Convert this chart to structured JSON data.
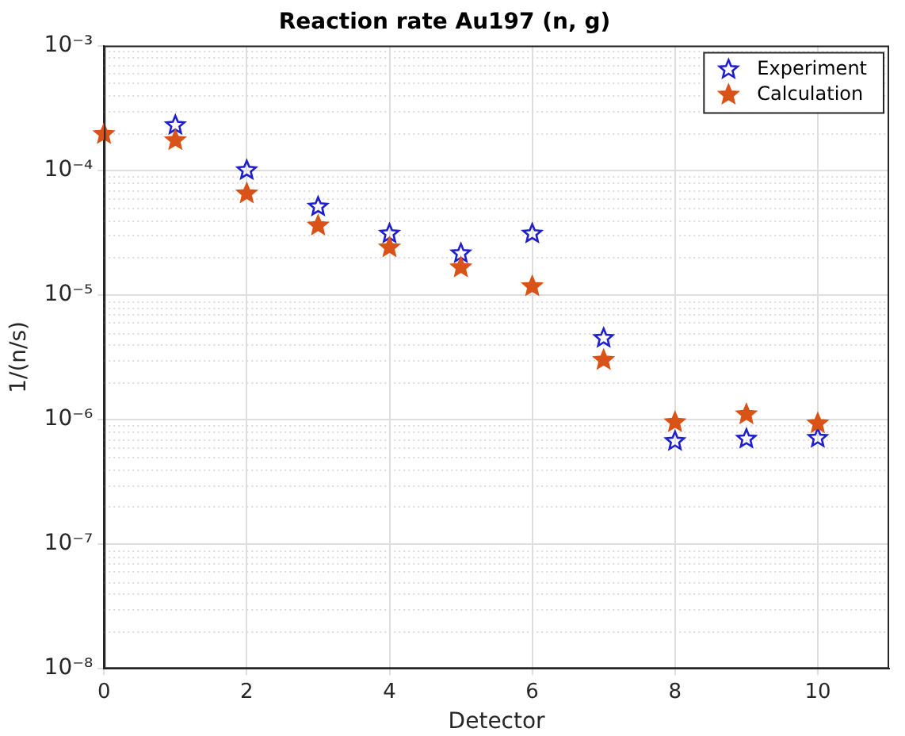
{
  "chart_data": {
    "type": "scatter",
    "title": "Reaction rate Au197 (n, g)",
    "xlabel": "Detector",
    "ylabel": "1/(n/s)",
    "x": [
      0,
      1,
      2,
      3,
      4,
      5,
      6,
      7,
      8,
      9,
      10
    ],
    "series": [
      {
        "name": "Experiment",
        "color": "#1f1fd0",
        "marker": "star",
        "values": [
          null,
          0.00023,
          0.0001,
          5.1e-05,
          3.1e-05,
          2.15e-05,
          3.1e-05,
          4.5e-06,
          6.7e-07,
          7e-07,
          7.1e-07
        ]
      },
      {
        "name": "Calculation",
        "color": "#d95319",
        "marker": "star",
        "values": [
          0.000195,
          0.000174,
          6.5e-05,
          3.6e-05,
          2.4e-05,
          1.66e-05,
          1.17e-05,
          3e-06,
          9.5e-07,
          1.1e-06,
          9.3e-07
        ]
      }
    ],
    "log": "y",
    "xlim": [
      0,
      11
    ],
    "xticks": [
      0,
      2,
      4,
      6,
      8,
      10
    ],
    "ylim": [
      1e-08,
      0.001
    ],
    "yticks": [
      {
        "value": 1e-08,
        "label": "10⁻⁸"
      },
      {
        "value": 1e-07,
        "label": "10⁻⁷"
      },
      {
        "value": 1e-06,
        "label": "10⁻⁶"
      },
      {
        "value": 1e-05,
        "label": "10⁻⁵"
      },
      {
        "value": 0.0001,
        "label": "10⁻⁴"
      },
      {
        "value": 0.001,
        "label": "10⁻³"
      }
    ],
    "grid": true,
    "legend": "top right"
  }
}
